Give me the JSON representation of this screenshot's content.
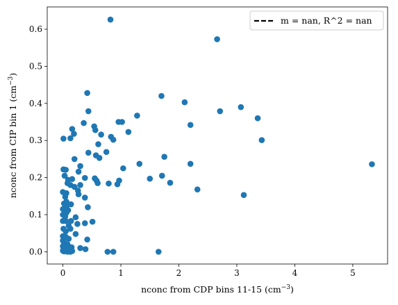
{
  "chart_data": {
    "type": "scatter",
    "title": "",
    "xlabel": "nconc from CDP bins 11-15 (cm",
    "xlabel_exp": "−3",
    "xlabel_close": ")",
    "ylabel": "nconc from CIP bin 1 (cm",
    "ylabel_exp": "−3",
    "ylabel_close": ")",
    "xlim": [
      -0.27,
      5.6
    ],
    "ylim": [
      -0.033,
      0.66
    ],
    "x_ticks": [
      0,
      1,
      2,
      3,
      4,
      5
    ],
    "y_ticks": [
      0.0,
      0.1,
      0.2,
      0.3,
      0.4,
      0.5,
      0.6
    ],
    "x_tick_labels": [
      "0",
      "1",
      "2",
      "3",
      "4",
      "5"
    ],
    "y_tick_labels": [
      "0.0",
      "0.1",
      "0.2",
      "0.3",
      "0.4",
      "0.5",
      "0.6"
    ],
    "legend": {
      "placement": "top-right",
      "entries": [
        {
          "label": "m = nan, R^2 = nan",
          "style": "dashed-line"
        }
      ]
    },
    "grid": false,
    "series": [
      {
        "color": "#1f77b4",
        "points": [
          [
            0.82,
            0.626
          ],
          [
            2.66,
            0.573
          ],
          [
            0.42,
            0.428
          ],
          [
            1.7,
            0.42
          ],
          [
            2.1,
            0.403
          ],
          [
            3.07,
            0.39
          ],
          [
            0.44,
            0.379
          ],
          [
            2.71,
            0.379
          ],
          [
            1.28,
            0.367
          ],
          [
            3.36,
            0.36
          ],
          [
            0.36,
            0.347
          ],
          [
            0.96,
            0.35
          ],
          [
            1.02,
            0.35
          ],
          [
            0.54,
            0.338
          ],
          [
            2.2,
            0.342
          ],
          [
            0.16,
            0.331
          ],
          [
            0.56,
            0.328
          ],
          [
            1.13,
            0.323
          ],
          [
            0.19,
            0.318
          ],
          [
            0.66,
            0.316
          ],
          [
            0.13,
            0.306
          ],
          [
            0.01,
            0.305
          ],
          [
            0.83,
            0.31
          ],
          [
            0.87,
            0.302
          ],
          [
            3.43,
            0.301
          ],
          [
            0.61,
            0.29
          ],
          [
            0.44,
            0.267
          ],
          [
            0.75,
            0.269
          ],
          [
            0.57,
            0.26
          ],
          [
            0.63,
            0.253
          ],
          [
            1.75,
            0.256
          ],
          [
            0.2,
            0.25
          ],
          [
            1.32,
            0.237
          ],
          [
            2.2,
            0.237
          ],
          [
            5.33,
            0.236
          ],
          [
            0.3,
            0.231
          ],
          [
            1.04,
            0.225
          ],
          [
            0.01,
            0.222
          ],
          [
            0.05,
            0.221
          ],
          [
            0.27,
            0.216
          ],
          [
            0.03,
            0.205
          ],
          [
            1.71,
            0.205
          ],
          [
            0.38,
            0.199
          ],
          [
            0.55,
            0.198
          ],
          [
            1.5,
            0.197
          ],
          [
            0.09,
            0.194
          ],
          [
            0.16,
            0.196
          ],
          [
            0.58,
            0.192
          ],
          [
            0.97,
            0.192
          ],
          [
            0.13,
            0.18
          ],
          [
            0.6,
            0.185
          ],
          [
            0.79,
            0.184
          ],
          [
            0.94,
            0.182
          ],
          [
            1.85,
            0.186
          ],
          [
            0.08,
            0.185
          ],
          [
            0.3,
            0.18
          ],
          [
            0.2,
            0.175
          ],
          [
            2.32,
            0.168
          ],
          [
            0.26,
            0.165
          ],
          [
            0.0,
            0.161
          ],
          [
            0.06,
            0.158
          ],
          [
            0.27,
            0.155
          ],
          [
            3.12,
            0.153
          ],
          [
            0.04,
            0.148
          ],
          [
            0.38,
            0.146
          ],
          [
            0.06,
            0.135
          ],
          [
            0.02,
            0.13
          ],
          [
            0.14,
            0.128
          ],
          [
            0.06,
            0.121
          ],
          [
            0.43,
            0.12
          ],
          [
            0.0,
            0.115
          ],
          [
            0.09,
            0.112
          ],
          [
            0.06,
            0.105
          ],
          [
            0.0,
            0.1
          ],
          [
            0.04,
            0.095
          ],
          [
            0.22,
            0.093
          ],
          [
            0.0,
            0.083
          ],
          [
            0.05,
            0.083
          ],
          [
            0.14,
            0.083
          ],
          [
            0.38,
            0.077
          ],
          [
            0.51,
            0.081
          ],
          [
            0.25,
            0.075
          ],
          [
            0.1,
            0.07
          ],
          [
            0.01,
            0.062
          ],
          [
            0.13,
            0.062
          ],
          [
            0.05,
            0.055
          ],
          [
            0.22,
            0.048
          ],
          [
            0.0,
            0.042
          ],
          [
            0.05,
            0.04
          ],
          [
            0.1,
            0.035
          ],
          [
            0.0,
            0.03
          ],
          [
            0.02,
            0.025
          ],
          [
            0.42,
            0.033
          ],
          [
            0.08,
            0.02
          ],
          [
            0.0,
            0.015
          ],
          [
            0.15,
            0.012
          ],
          [
            0.3,
            0.01
          ],
          [
            0.39,
            0.007
          ],
          [
            0.0,
            0.003
          ],
          [
            0.02,
            0.001
          ],
          [
            0.05,
            0.002
          ],
          [
            0.08,
            0.0
          ],
          [
            0.1,
            0.001
          ],
          [
            0.13,
            0.0
          ],
          [
            0.16,
            0.002
          ],
          [
            0.03,
            0.008
          ],
          [
            0.06,
            0.01
          ],
          [
            0.01,
            0.012
          ],
          [
            0.77,
            0.0
          ],
          [
            0.87,
            0.0
          ],
          [
            1.65,
            0.0
          ]
        ]
      }
    ]
  }
}
